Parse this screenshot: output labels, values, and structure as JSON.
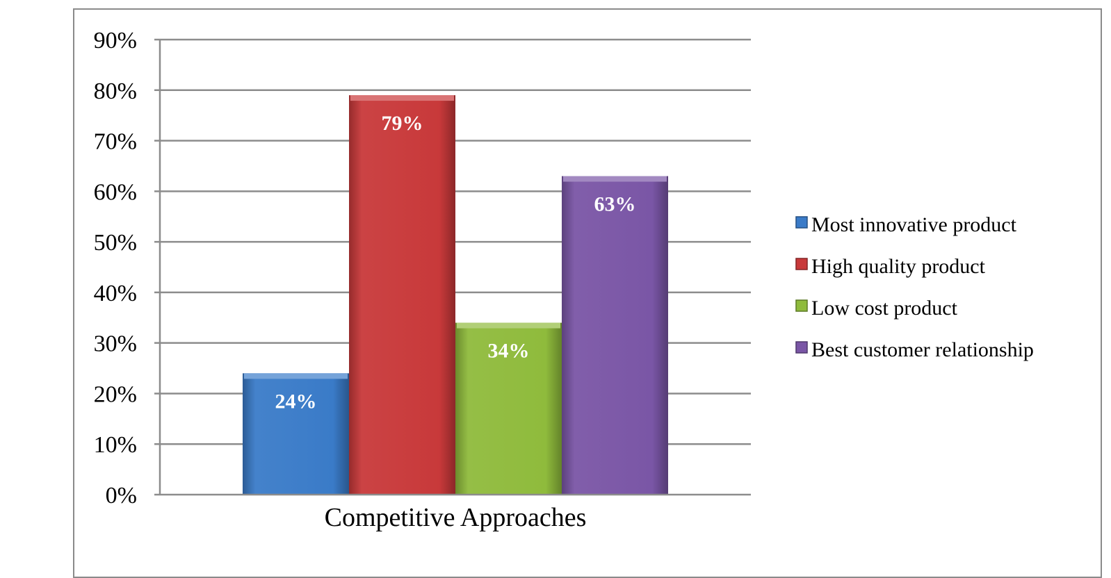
{
  "chart_data": {
    "type": "bar",
    "categories": [
      "Competitive Approaches"
    ],
    "xlabel": "Competitive Approaches",
    "ylabel": "",
    "title": "",
    "ylim": [
      0,
      90
    ],
    "y_tick_step": 10,
    "y_tick_format": "percent",
    "grid": true,
    "legend_position": "right",
    "series": [
      {
        "name": "Most innovative product",
        "values": [
          24
        ],
        "label": "24%",
        "color": "#3a7bc8"
      },
      {
        "name": "High quality product",
        "values": [
          79
        ],
        "label": "79%",
        "color": "#c8393a"
      },
      {
        "name": "Low cost product",
        "values": [
          34
        ],
        "label": "34%",
        "color": "#8fbb3c"
      },
      {
        "name": "Best customer relationship",
        "values": [
          63
        ],
        "label": "63%",
        "color": "#7a56a6"
      }
    ]
  }
}
